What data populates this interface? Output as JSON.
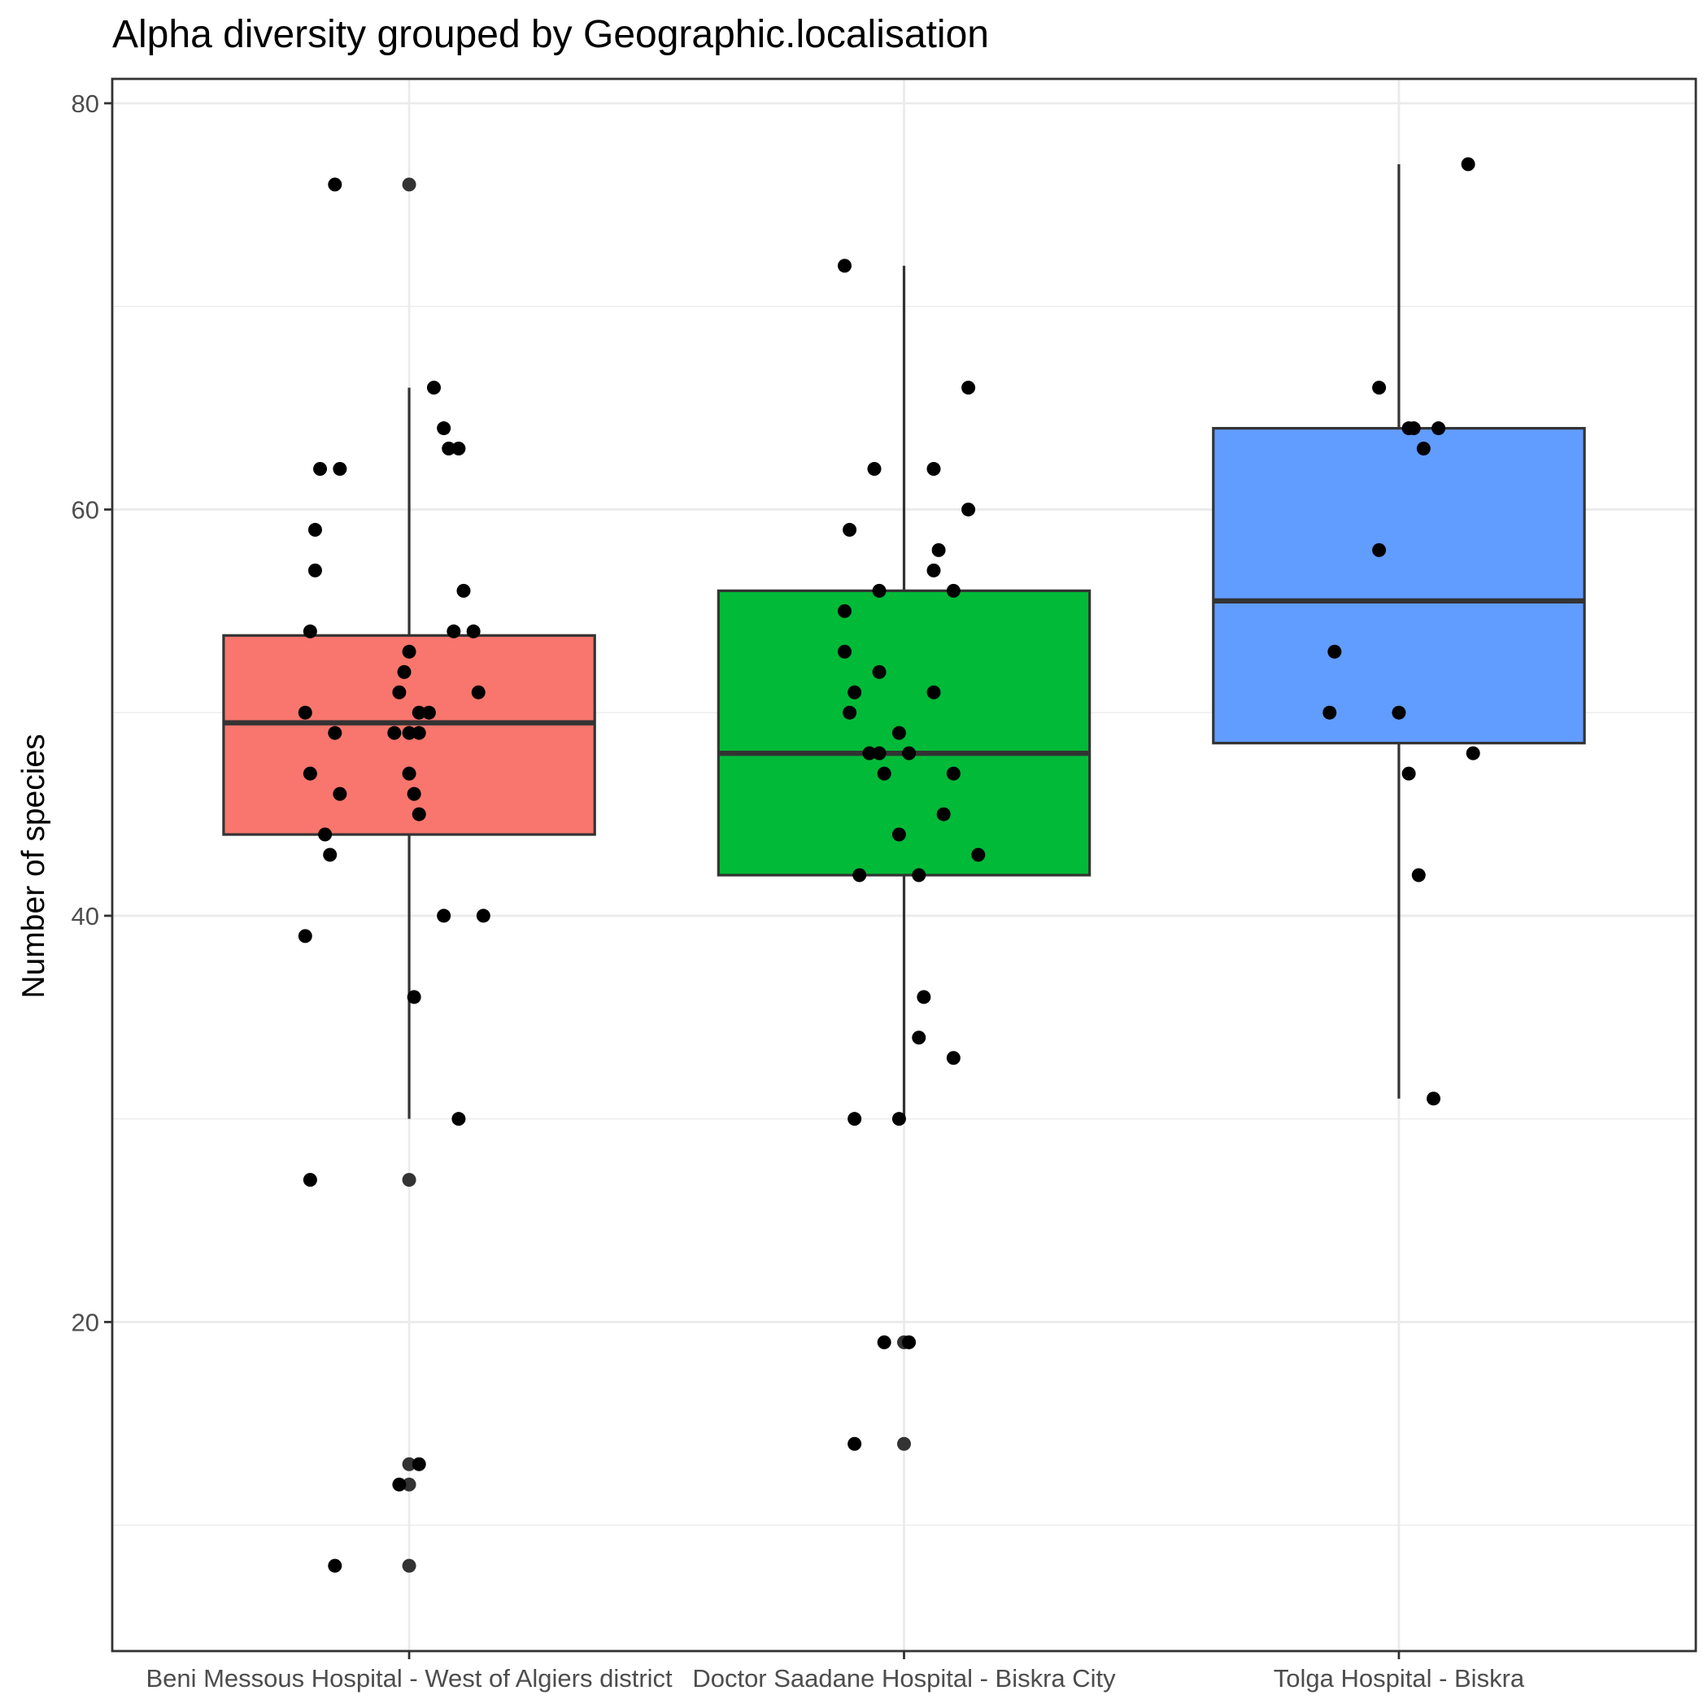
{
  "chart_data": {
    "type": "box",
    "title": "Alpha diversity grouped by Geographic.localisation",
    "xlabel": "",
    "ylabel": "Number of species",
    "ylim": [
      3.8,
      81.2
    ],
    "y_ticks": [
      20,
      40,
      60,
      80
    ],
    "grid": true,
    "legend": "none",
    "categories": [
      "Beni Messous Hospital - West of Algiers district",
      "Doctor Saadane Hospital - Biskra City",
      "Tolga Hospital - Biskra"
    ],
    "colors": [
      "#F8766D",
      "#00BA38",
      "#619CFF"
    ],
    "boxes": [
      {
        "name": "Beni Messous Hospital - West of Algiers district",
        "q1": 44.0,
        "median": 49.5,
        "q3": 53.8,
        "whisker_low": 30,
        "whisker_high": 66,
        "outliers": [
          76,
          27,
          13,
          12,
          8
        ],
        "points": [
          {
            "x": 0.85,
            "y": 76
          },
          {
            "x": 0.82,
            "y": 62
          },
          {
            "x": 0.86,
            "y": 62
          },
          {
            "x": 0.81,
            "y": 59
          },
          {
            "x": 0.81,
            "y": 57
          },
          {
            "x": 0.8,
            "y": 54
          },
          {
            "x": 1.09,
            "y": 54
          },
          {
            "x": 1.13,
            "y": 54
          },
          {
            "x": 1.05,
            "y": 66
          },
          {
            "x": 1.07,
            "y": 64
          },
          {
            "x": 1.08,
            "y": 63
          },
          {
            "x": 1.1,
            "y": 63
          },
          {
            "x": 1.11,
            "y": 56
          },
          {
            "x": 1.0,
            "y": 53
          },
          {
            "x": 0.99,
            "y": 52
          },
          {
            "x": 0.98,
            "y": 51
          },
          {
            "x": 1.14,
            "y": 51
          },
          {
            "x": 0.79,
            "y": 50
          },
          {
            "x": 1.02,
            "y": 50
          },
          {
            "x": 1.04,
            "y": 50
          },
          {
            "x": 0.85,
            "y": 49
          },
          {
            "x": 0.97,
            "y": 49
          },
          {
            "x": 1.0,
            "y": 49
          },
          {
            "x": 1.02,
            "y": 49
          },
          {
            "x": 0.8,
            "y": 47
          },
          {
            "x": 1.0,
            "y": 47
          },
          {
            "x": 0.86,
            "y": 46
          },
          {
            "x": 1.01,
            "y": 46
          },
          {
            "x": 1.02,
            "y": 45
          },
          {
            "x": 0.83,
            "y": 44
          },
          {
            "x": 0.84,
            "y": 43
          },
          {
            "x": 1.07,
            "y": 40
          },
          {
            "x": 1.15,
            "y": 40
          },
          {
            "x": 0.79,
            "y": 39
          },
          {
            "x": 1.01,
            "y": 36
          },
          {
            "x": 1.1,
            "y": 30
          },
          {
            "x": 0.8,
            "y": 27
          },
          {
            "x": 1.02,
            "y": 13
          },
          {
            "x": 0.98,
            "y": 12
          },
          {
            "x": 0.85,
            "y": 8
          }
        ]
      },
      {
        "name": "Doctor Saadane Hospital - Biskra City",
        "q1": 42.0,
        "median": 48.0,
        "q3": 56.0,
        "whisker_low": 30,
        "whisker_high": 72,
        "outliers": [
          19,
          14
        ],
        "points": [
          {
            "x": 1.88,
            "y": 72
          },
          {
            "x": 2.13,
            "y": 66
          },
          {
            "x": 1.94,
            "y": 62
          },
          {
            "x": 2.06,
            "y": 62
          },
          {
            "x": 2.13,
            "y": 60
          },
          {
            "x": 1.89,
            "y": 59
          },
          {
            "x": 2.07,
            "y": 58
          },
          {
            "x": 2.06,
            "y": 57
          },
          {
            "x": 1.95,
            "y": 56
          },
          {
            "x": 2.1,
            "y": 56
          },
          {
            "x": 1.88,
            "y": 55
          },
          {
            "x": 1.88,
            "y": 53
          },
          {
            "x": 1.95,
            "y": 52
          },
          {
            "x": 1.9,
            "y": 51
          },
          {
            "x": 2.06,
            "y": 51
          },
          {
            "x": 1.89,
            "y": 50
          },
          {
            "x": 1.99,
            "y": 49
          },
          {
            "x": 1.93,
            "y": 48
          },
          {
            "x": 1.95,
            "y": 48
          },
          {
            "x": 2.01,
            "y": 48
          },
          {
            "x": 1.96,
            "y": 47
          },
          {
            "x": 2.1,
            "y": 47
          },
          {
            "x": 2.08,
            "y": 45
          },
          {
            "x": 1.99,
            "y": 44
          },
          {
            "x": 2.15,
            "y": 43
          },
          {
            "x": 1.91,
            "y": 42
          },
          {
            "x": 2.03,
            "y": 42
          },
          {
            "x": 2.04,
            "y": 36
          },
          {
            "x": 2.03,
            "y": 34
          },
          {
            "x": 2.1,
            "y": 33
          },
          {
            "x": 1.9,
            "y": 30
          },
          {
            "x": 1.99,
            "y": 30
          },
          {
            "x": 1.96,
            "y": 19
          },
          {
            "x": 2.01,
            "y": 19
          },
          {
            "x": 1.9,
            "y": 14
          }
        ]
      },
      {
        "name": "Tolga Hospital - Biskra",
        "q1": 48.5,
        "median": 55.5,
        "q3": 64.0,
        "whisker_low": 31,
        "whisker_high": 77,
        "outliers": [],
        "points": [
          {
            "x": 3.14,
            "y": 77
          },
          {
            "x": 2.96,
            "y": 66
          },
          {
            "x": 3.02,
            "y": 64
          },
          {
            "x": 3.03,
            "y": 64
          },
          {
            "x": 3.08,
            "y": 64
          },
          {
            "x": 3.05,
            "y": 63
          },
          {
            "x": 2.96,
            "y": 58
          },
          {
            "x": 2.87,
            "y": 53
          },
          {
            "x": 2.86,
            "y": 50
          },
          {
            "x": 3.0,
            "y": 50
          },
          {
            "x": 3.15,
            "y": 48
          },
          {
            "x": 3.02,
            "y": 47
          },
          {
            "x": 3.04,
            "y": 42
          },
          {
            "x": 3.07,
            "y": 31
          }
        ]
      }
    ]
  }
}
